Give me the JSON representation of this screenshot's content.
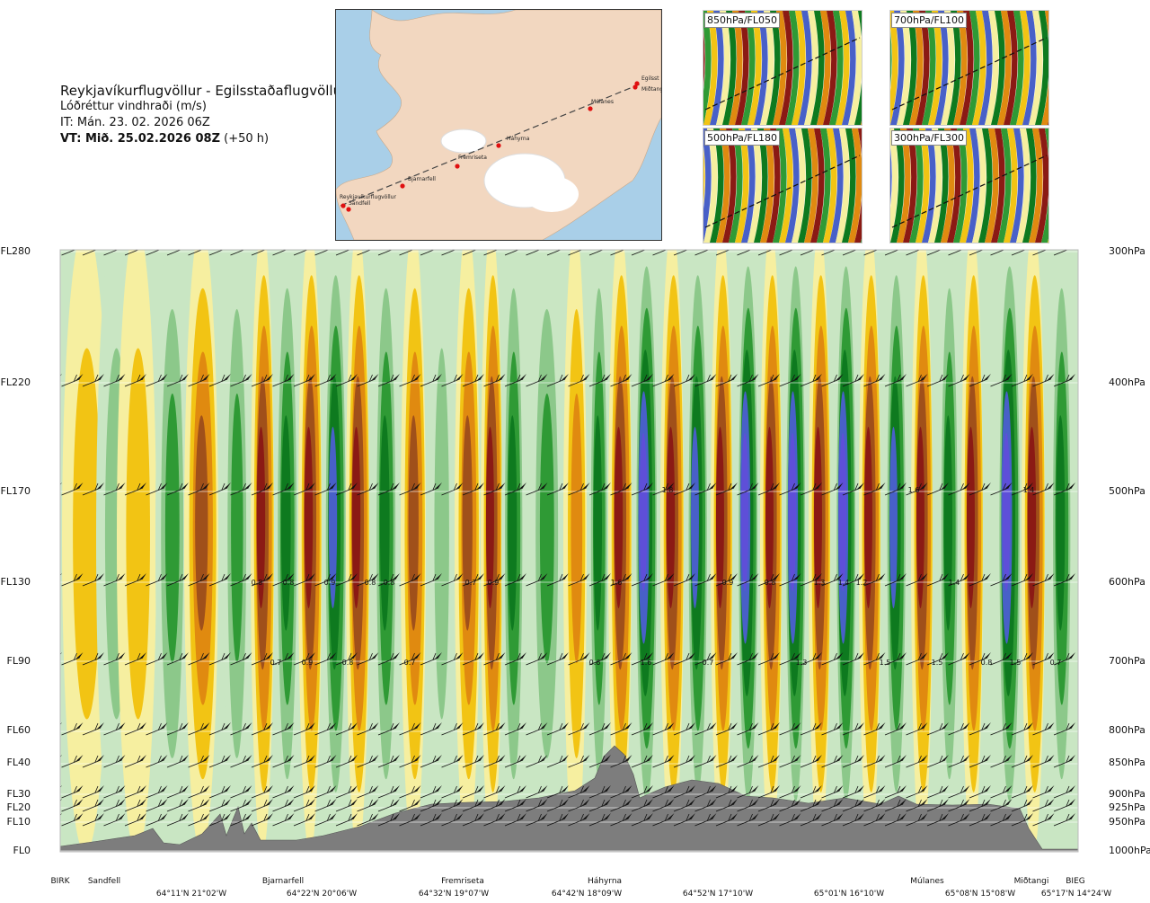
{
  "header": {
    "route": "Reykjavíkurflugvöllur - Egilsstaðaflugvöllur",
    "parameter": "Lóðréttur vindhraði (m/s)",
    "issue_time": "IT: Mán. 23. 02. 2026 06Z",
    "valid_time_bold": "VT: Mið. 25.02.2026 08Z",
    "valid_time_offset": "(+50 h)"
  },
  "map": {
    "points": [
      "Reykjavíkurflugvöllur",
      "Sandfell",
      "Bjarnarfell",
      "Fremriseta",
      "Háhyrna",
      "Múlanes",
      "Egilsst",
      "Miðtangi"
    ],
    "colors": {
      "sea": "#a9cfe8",
      "land": "#f2d7c0",
      "ice": "#ffffff",
      "route": "#444444",
      "point": "#e01010"
    }
  },
  "thumbnails": [
    {
      "label": "850hPa/FL050"
    },
    {
      "label": "700hPa/FL100"
    },
    {
      "label": "500hPa/FL180"
    },
    {
      "label": "300hPa/FL300"
    }
  ],
  "chart_data": {
    "type": "heatmap",
    "title": "Lóðréttur vindhraði (m/s)",
    "levels": [
      {
        "fl": "FL280",
        "hpa": "300hPa"
      },
      {
        "fl": "FL220",
        "hpa": "400hPa"
      },
      {
        "fl": "FL170",
        "hpa": "500hPa"
      },
      {
        "fl": "FL130",
        "hpa": "600hPa"
      },
      {
        "fl": "FL90",
        "hpa": "700hPa"
      },
      {
        "fl": "FL60",
        "hpa": "800hPa"
      },
      {
        "fl": "FL40",
        "hpa": "850hPa"
      },
      {
        "fl": "FL30",
        "hpa": "900hPa"
      },
      {
        "fl": "FL20",
        "hpa": "925hPa"
      },
      {
        "fl": "FL10",
        "hpa": "950hPa"
      },
      {
        "fl": "FL0",
        "hpa": "1000hPa"
      }
    ],
    "locations": [
      "BIRK",
      "Sandfell",
      "Bjarnarfell",
      "Fremriseta",
      "Háhyrna",
      "Múlanes",
      "Miðtangi",
      "BIEG"
    ],
    "coordinates": [
      "64°11'N 21°02'W",
      "64°22'N 20°06'W",
      "64°32'N 19°07'W",
      "64°42'N 18°09'W",
      "64°52'N 17°10'W",
      "65°01'N 16°10'W",
      "65°08'N 15°08'W",
      "65°17'N 14°24'W"
    ],
    "max_labels_fl130": [
      "0.8",
      "0.8",
      "0.9",
      "0.8",
      "0.8",
      "0.7",
      "0.9",
      "1.6",
      "0.9",
      "0.8",
      "1.3",
      "1.4",
      "1.2",
      "1.4"
    ],
    "max_labels_fl90": [
      "0.7",
      "0.9",
      "0.8",
      "0.7",
      "0.6",
      "1.6",
      "0.7",
      "1.3",
      "1.5",
      "1.5",
      "0.8",
      "1.5",
      "0.7"
    ],
    "max_labels_upper": [
      "1.8",
      "1.6",
      "1.4"
    ],
    "colors": {
      "strong_up": "#8b1a14",
      "up": "#a0501a",
      "moderate_up": "#e08a10",
      "weak_up": "#f2c414",
      "light_up": "#f6efa0",
      "light_down": "#c9e6c3",
      "weak_down": "#8cc88a",
      "down": "#2f9a35",
      "strong_down": "#0e7a1f",
      "very_strong_down": "#4860c8",
      "extreme_down": "#5e4fd8",
      "terrain": "#7d7d7d"
    }
  }
}
